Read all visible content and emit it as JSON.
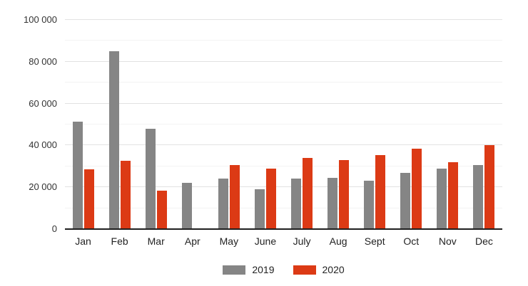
{
  "chart_data": {
    "type": "bar",
    "title": "",
    "xlabel": "",
    "ylabel": "",
    "categories": [
      "Jan",
      "Feb",
      "Mar",
      "Apr",
      "May",
      "June",
      "July",
      "Aug",
      "Sept",
      "Oct",
      "Nov",
      "Dec"
    ],
    "series": [
      {
        "name": "2019",
        "color": "#858585",
        "values": [
          51500,
          85000,
          48000,
          22000,
          24000,
          19000,
          24000,
          24500,
          23000,
          27000,
          29000,
          30500
        ]
      },
      {
        "name": "2020",
        "color": "#DC3A15",
        "values": [
          28500,
          32500,
          18500,
          null,
          30500,
          29000,
          34000,
          33000,
          35500,
          38500,
          32000,
          40000
        ]
      }
    ],
    "ylim": [
      0,
      100000
    ],
    "y_major_step": 20000,
    "y_minor_step": 10000,
    "y_tick_values": [
      0,
      20000,
      40000,
      60000,
      80000,
      100000
    ],
    "y_tick_labels": [
      "0",
      "20 000",
      "40 000",
      "60 000",
      "80 000",
      "100 000"
    ],
    "grid": true,
    "legend_position": "bottom",
    "colors": {
      "major_gridline": "#e2e2e2",
      "minor_gridline": "#f3f3f3",
      "axis_line": "#1f1f1f",
      "tick_text": "#333333",
      "category_text": "#222222",
      "background": "#ffffff"
    }
  }
}
